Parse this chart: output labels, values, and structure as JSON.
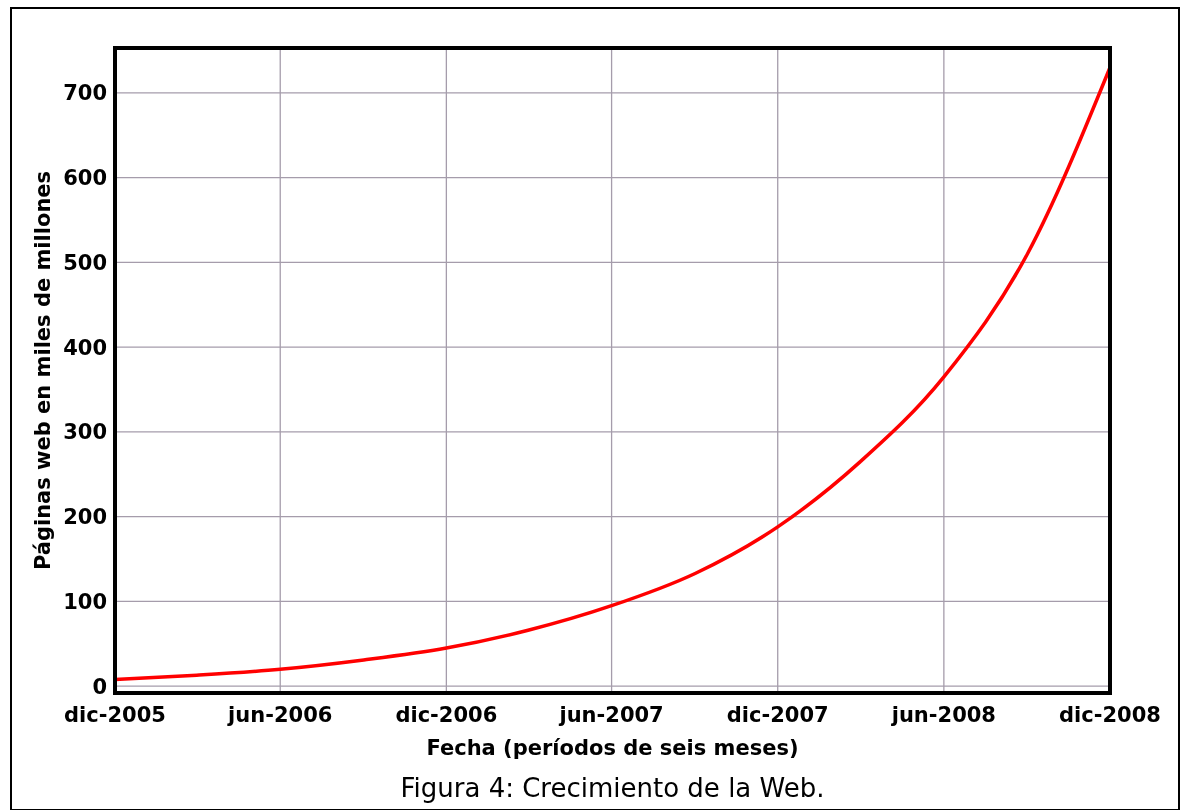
{
  "chart_data": {
    "type": "line",
    "xlabel": "Fecha (períodos de seis meses)",
    "ylabel": "Páginas web en miles de millones",
    "annotations": [
      "Figura 4: Crecimiento de la Web."
    ],
    "x": [
      "2005-12",
      "2006-03",
      "2006-06",
      "2006-09",
      "2006-12",
      "2007-03",
      "2007-06",
      "2007-09",
      "2007-12",
      "2008-03",
      "2008-06",
      "2008-09",
      "2008-12"
    ],
    "series": [
      {
        "color": "#ff0000",
        "values": [
          8,
          13,
          20,
          31,
          45,
          66,
          95,
          133,
          188,
          265,
          365,
          510,
          730
        ]
      }
    ],
    "xlim": [
      "2005-12",
      "2008-12"
    ],
    "xticks": [
      {
        "value": "2005-12",
        "label": "dic-2005"
      },
      {
        "value": "2006-06",
        "label": "jun-2006"
      },
      {
        "value": "2006-12",
        "label": "dic-2006"
      },
      {
        "value": "2007-06",
        "label": "jun-2007"
      },
      {
        "value": "2007-12",
        "label": "dic-2007"
      },
      {
        "value": "2008-06",
        "label": "jun-2008"
      },
      {
        "value": "2008-12",
        "label": "dic-2008"
      }
    ],
    "ylim": [
      -8,
      753
    ],
    "yticks": [
      0,
      100,
      200,
      300,
      400,
      500,
      600,
      700
    ],
    "grid": true,
    "marker": "none",
    "line_style": "solid"
  }
}
